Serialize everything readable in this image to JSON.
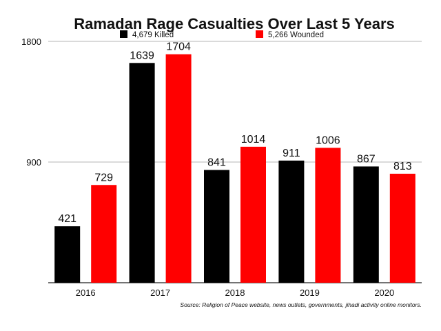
{
  "chart_data": {
    "type": "bar",
    "title": "Ramadan Rage Casualties Over Last 5 Years",
    "categories": [
      "2016",
      "2017",
      "2018",
      "2019",
      "2020"
    ],
    "series": [
      {
        "name": "4,679 Killed",
        "color": "#000000",
        "values": [
          421,
          1639,
          841,
          911,
          867
        ]
      },
      {
        "name": "5,266 Wounded",
        "color": "#ff0000",
        "values": [
          729,
          1704,
          1014,
          1006,
          813
        ]
      }
    ],
    "ylim": [
      0,
      1800
    ],
    "yticks": [
      "900",
      "1800"
    ],
    "grid": true,
    "legend": "top",
    "source": "Source: Religion of Peace website, news outlets, governments, jihadi activity online monitors."
  }
}
